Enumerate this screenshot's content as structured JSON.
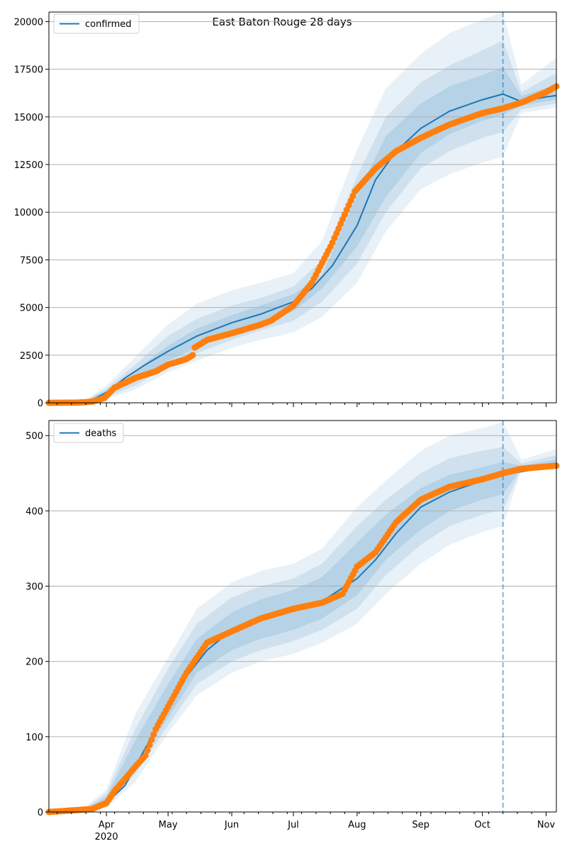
{
  "figure_title": "East Baton Rouge 28 days",
  "colors": {
    "model": "#1f77b4",
    "observed": "#ff7f0e",
    "band": "#1f77b4",
    "grid": "#b0b0b0",
    "forecast_line": "#1f77b4"
  },
  "x_axis": {
    "month_labels": [
      "Apr",
      "May",
      "Jun",
      "Jul",
      "Aug",
      "Sep",
      "Oct",
      "Nov"
    ],
    "year_label": "2020"
  },
  "chart_data": [
    {
      "type": "line",
      "legend": "confirmed",
      "legend_position": "top-left",
      "grid": "horizontal",
      "xlim": [
        "2020-03-04",
        "2020-11-06"
      ],
      "ylim": [
        0,
        20500
      ],
      "y_ticks": [
        0,
        2500,
        5000,
        7500,
        10000,
        12500,
        15000,
        17500,
        20000
      ],
      "forecast_start": "2020-10-11",
      "model_series": {
        "x": [
          "2020-03-04",
          "2020-03-15",
          "2020-03-21",
          "2020-03-25",
          "2020-04-01",
          "2020-04-10",
          "2020-04-20",
          "2020-05-01",
          "2020-05-15",
          "2020-06-01",
          "2020-06-15",
          "2020-07-01",
          "2020-07-10",
          "2020-07-20",
          "2020-08-01",
          "2020-08-10",
          "2020-08-20",
          "2020-09-01",
          "2020-09-15",
          "2020-10-01",
          "2020-10-11",
          "2020-10-20",
          "2020-11-01",
          "2020-11-06"
        ],
        "y": [
          0,
          5,
          30,
          150,
          550,
          1300,
          2000,
          2700,
          3500,
          4200,
          4650,
          5300,
          6000,
          7200,
          9300,
          11700,
          13200,
          14400,
          15300,
          15900,
          16200,
          15800,
          16050,
          16120
        ]
      },
      "observed_series": {
        "x": [
          "2020-03-04",
          "2020-03-18",
          "2020-03-25",
          "2020-03-31",
          "2020-04-05",
          "2020-04-15",
          "2020-04-25",
          "2020-05-01",
          "2020-05-10",
          "2020-05-13",
          "2020-05-14",
          "2020-05-20",
          "2020-06-01",
          "2020-06-15",
          "2020-06-20",
          "2020-07-01",
          "2020-07-10",
          "2020-07-20",
          "2020-07-31",
          "2020-08-10",
          "2020-08-20",
          "2020-09-01",
          "2020-09-15",
          "2020-10-01",
          "2020-10-11",
          "2020-10-20",
          "2020-11-01",
          "2020-11-06"
        ],
        "y": [
          0,
          10,
          60,
          250,
          800,
          1300,
          1650,
          2000,
          2300,
          2500,
          2900,
          3300,
          3650,
          4100,
          4300,
          5100,
          6300,
          8400,
          11100,
          12300,
          13200,
          13900,
          14600,
          15200,
          15450,
          15750,
          16300,
          16600
        ]
      },
      "bands": {
        "x": [
          "2020-03-04",
          "2020-03-20",
          "2020-04-01",
          "2020-04-15",
          "2020-05-01",
          "2020-05-15",
          "2020-06-01",
          "2020-06-15",
          "2020-07-01",
          "2020-07-15",
          "2020-08-01",
          "2020-08-15",
          "2020-09-01",
          "2020-09-15",
          "2020-10-01",
          "2020-10-11",
          "2020-10-20",
          "2020-11-06"
        ],
        "lower_outer": [
          0,
          0,
          200,
          700,
          1600,
          2200,
          2900,
          3300,
          3700,
          4500,
          6300,
          9000,
          11200,
          12000,
          12600,
          12900,
          15200,
          15500
        ],
        "upper_outer": [
          0,
          5,
          900,
          2400,
          4100,
          5200,
          5900,
          6300,
          6800,
          8500,
          13300,
          16500,
          18300,
          19400,
          20100,
          20500,
          16700,
          18100
        ],
        "lower_mid": [
          0,
          0,
          300,
          900,
          1900,
          2600,
          3300,
          3800,
          4300,
          5300,
          7300,
          10000,
          12300,
          13200,
          13900,
          14200,
          15400,
          15700
        ],
        "upper_mid": [
          0,
          3,
          750,
          2000,
          3500,
          4400,
          5100,
          5500,
          6100,
          7500,
          11900,
          15000,
          16800,
          17700,
          18500,
          19000,
          16300,
          17300
        ],
        "lower_inner": [
          0,
          0,
          400,
          1100,
          2200,
          2900,
          3700,
          4200,
          4800,
          6000,
          8200,
          10800,
          13100,
          14100,
          14800,
          15100,
          15600,
          15900
        ],
        "upper_inner": [
          0,
          2,
          650,
          1700,
          3000,
          3900,
          4600,
          5100,
          5700,
          6700,
          10900,
          14000,
          15700,
          16600,
          17200,
          17600,
          16100,
          16700
        ]
      }
    },
    {
      "type": "line",
      "legend": "deaths",
      "legend_position": "top-left",
      "grid": "horizontal",
      "xlim": [
        "2020-03-04",
        "2020-11-06"
      ],
      "ylim": [
        0,
        520
      ],
      "y_ticks": [
        0,
        100,
        200,
        300,
        400,
        500
      ],
      "forecast_start": "2020-10-11",
      "model_series": {
        "x": [
          "2020-03-04",
          "2020-03-22",
          "2020-04-01",
          "2020-04-10",
          "2020-04-20",
          "2020-05-01",
          "2020-05-10",
          "2020-05-20",
          "2020-06-01",
          "2020-06-15",
          "2020-07-01",
          "2020-07-15",
          "2020-08-01",
          "2020-08-10",
          "2020-08-20",
          "2020-09-01",
          "2020-09-15",
          "2020-10-01",
          "2020-10-11",
          "2020-10-20",
          "2020-11-06"
        ],
        "y": [
          0,
          3,
          12,
          35,
          85,
          140,
          180,
          215,
          242,
          256,
          268,
          280,
          310,
          335,
          370,
          405,
          425,
          440,
          448,
          452,
          460
        ]
      },
      "observed_series": {
        "x": [
          "2020-03-04",
          "2020-03-25",
          "2020-04-01",
          "2020-04-05",
          "2020-04-15",
          "2020-04-20",
          "2020-04-25",
          "2020-05-01",
          "2020-05-10",
          "2020-05-20",
          "2020-06-01",
          "2020-06-15",
          "2020-07-01",
          "2020-07-15",
          "2020-07-25",
          "2020-08-01",
          "2020-08-10",
          "2020-08-20",
          "2020-09-01",
          "2020-09-15",
          "2020-10-01",
          "2020-10-11",
          "2020-10-20",
          "2020-11-06"
        ],
        "y": [
          0,
          4,
          12,
          28,
          60,
          75,
          110,
          140,
          185,
          225,
          240,
          257,
          270,
          278,
          290,
          326,
          345,
          385,
          415,
          432,
          442,
          450,
          456,
          460
        ]
      },
      "bands": {
        "x": [
          "2020-03-04",
          "2020-03-20",
          "2020-04-01",
          "2020-04-15",
          "2020-05-01",
          "2020-05-15",
          "2020-06-01",
          "2020-06-15",
          "2020-07-01",
          "2020-07-15",
          "2020-08-01",
          "2020-08-15",
          "2020-09-01",
          "2020-09-15",
          "2020-10-01",
          "2020-10-11",
          "2020-10-20",
          "2020-11-06"
        ],
        "lower_outer": [
          0,
          0,
          5,
          40,
          105,
          155,
          185,
          200,
          210,
          225,
          250,
          290,
          330,
          355,
          372,
          380,
          455,
          455
        ],
        "upper_outer": [
          0,
          3,
          30,
          130,
          205,
          270,
          305,
          320,
          330,
          350,
          405,
          440,
          480,
          500,
          510,
          518,
          468,
          482
        ],
        "lower_mid": [
          0,
          0,
          7,
          50,
          115,
          170,
          200,
          215,
          227,
          242,
          270,
          315,
          355,
          380,
          395,
          402,
          456,
          457
        ],
        "upper_mid": [
          0,
          2,
          25,
          110,
          190,
          250,
          285,
          300,
          310,
          330,
          380,
          415,
          450,
          470,
          480,
          485,
          463,
          474
        ],
        "lower_inner": [
          0,
          0,
          9,
          60,
          125,
          185,
          215,
          230,
          242,
          257,
          288,
          335,
          375,
          400,
          415,
          422,
          457,
          458
        ],
        "upper_inner": [
          0,
          1,
          20,
          95,
          170,
          230,
          265,
          282,
          295,
          312,
          358,
          395,
          430,
          448,
          458,
          465,
          460,
          468
        ]
      }
    }
  ]
}
